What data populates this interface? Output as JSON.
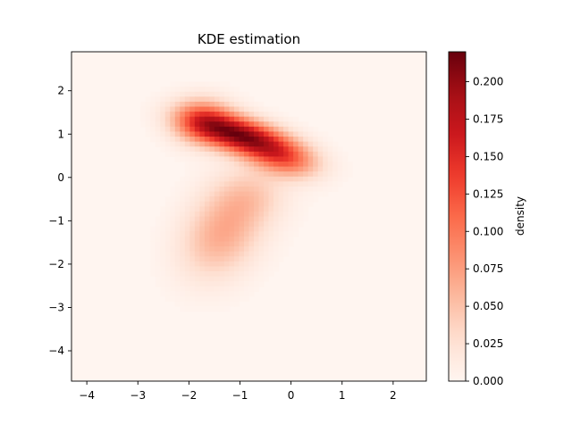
{
  "chart_data": {
    "type": "heatmap",
    "title": "KDE estimation",
    "xlabel": "",
    "ylabel": "",
    "xlim": [
      -4.3,
      2.65
    ],
    "ylim": [
      -4.7,
      2.9
    ],
    "x_ticks": [
      -4,
      -3,
      -2,
      -1,
      0,
      1,
      2
    ],
    "y_ticks": [
      -4,
      -3,
      -2,
      -1,
      0,
      1,
      2
    ],
    "x_tick_labels": [
      "−4",
      "−3",
      "−2",
      "−1",
      "0",
      "1",
      "2"
    ],
    "y_tick_labels": [
      "−4",
      "−3",
      "−2",
      "−1",
      "0",
      "1",
      "2"
    ],
    "colormap": "Reds",
    "colormap_stops": [
      "#fff5f0",
      "#fee0d2",
      "#fcbba1",
      "#fc9272",
      "#fb6a4a",
      "#ef3b2c",
      "#cb181d",
      "#a50f15",
      "#67000d"
    ],
    "grid": false,
    "density_peak": {
      "x": -0.95,
      "y": 0.95,
      "value": 0.22
    },
    "secondary_mode": {
      "x": -1.35,
      "y": -1.3
    },
    "colorbar": {
      "label": "density",
      "range": [
        0.0,
        0.22
      ],
      "ticks": [
        0.0,
        0.025,
        0.05,
        0.075,
        0.1,
        0.125,
        0.15,
        0.175,
        0.2
      ],
      "tick_labels": [
        "0.000",
        "0.025",
        "0.050",
        "0.075",
        "0.100",
        "0.125",
        "0.150",
        "0.175",
        "0.200"
      ]
    }
  }
}
